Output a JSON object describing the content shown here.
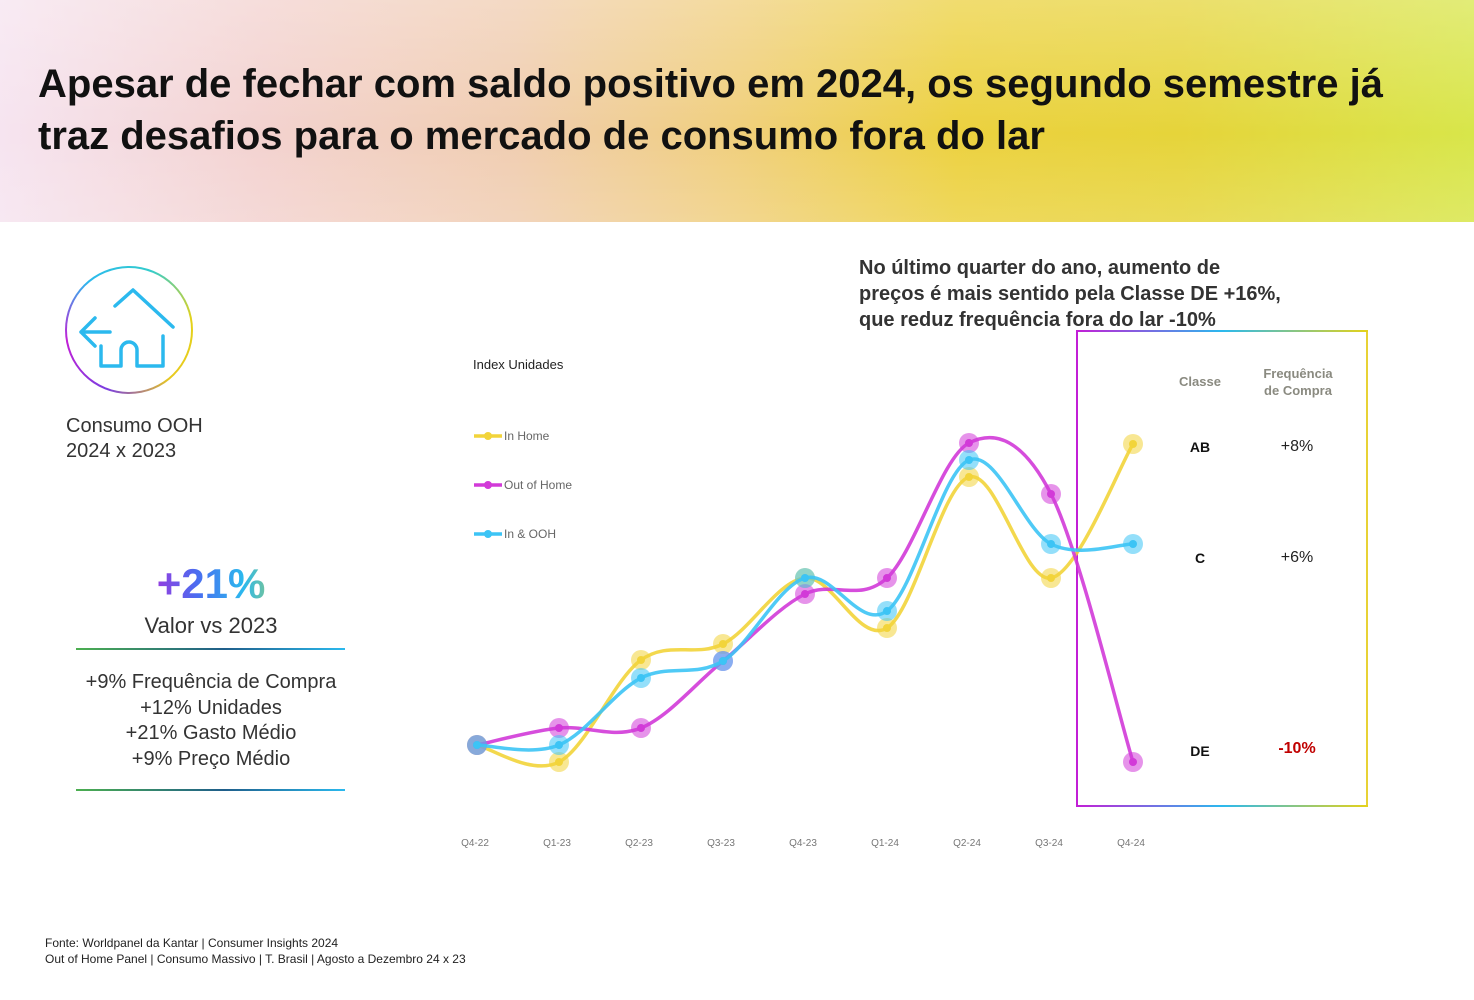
{
  "header": {
    "title": "Apesar de fechar com saldo positivo em 2024, os segundo semestre já traz desafios para o mercado de consumo fora do lar"
  },
  "left": {
    "icon": "house-arrow-left-icon",
    "label_line1": "Consumo OOH",
    "label_line2": "2024 x 2023",
    "big_value": "+21%",
    "big_caption": "Valor vs 2023",
    "stats": [
      "+9% Frequência de Compra",
      "+12% Unidades",
      "+21% Gasto Médio",
      "+9% Preço Médio"
    ]
  },
  "note": {
    "lines": [
      "No último quarter do ano, aumento de",
      "preços é mais sentido pela Classe DE +16%,",
      "que reduz frequência fora do lar -10%"
    ]
  },
  "table": {
    "header_classe": "Classe",
    "header_freq_1": "Frequência",
    "header_freq_2": "de Compra",
    "rows": [
      {
        "classe": "AB",
        "freq": "+8%",
        "color": "#222222"
      },
      {
        "classe": "C",
        "freq": "+6%",
        "color": "#222222"
      },
      {
        "classe": "DE",
        "freq": "-10%",
        "color": "#c00000"
      }
    ]
  },
  "chart_data": {
    "type": "line",
    "ylabel": "Index Unidades",
    "xlabel": "",
    "categories": [
      "Q4-22",
      "Q1-23",
      "Q2-23",
      "Q3-23",
      "Q4-23",
      "Q1-24",
      "Q2-24",
      "Q3-24",
      "Q4-24"
    ],
    "y_axis_shown": false,
    "grid": false,
    "legend_position": "top-left",
    "smooth": true,
    "series": [
      {
        "name": "In Home",
        "color": "#f2d43a",
        "values": [
          100,
          98.3,
          108.5,
          110.1,
          116.7,
          111.7,
          126.8,
          116.7,
          130.1
        ]
      },
      {
        "name": "Out of Home",
        "color": "#d23ad8",
        "values": [
          100,
          101.7,
          101.7,
          108.4,
          115.1,
          116.7,
          130.2,
          125.1,
          98.3
        ]
      },
      {
        "name": "In & OOH",
        "color": "#3cc4f5",
        "values": [
          100,
          100,
          106.7,
          108.4,
          116.7,
          113.4,
          128.5,
          120.1,
          120.1
        ]
      }
    ]
  },
  "footer": {
    "line1": "Fonte: Worldpanel da Kantar | Consumer Insights 2024",
    "line2": "Out of Home Panel | Consumo Massivo | T. Brasil | Agosto a Dezembro 24 x 23"
  }
}
